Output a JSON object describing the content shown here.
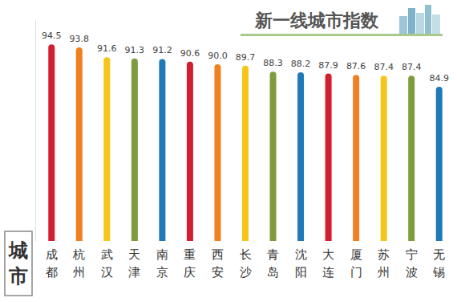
{
  "chart_data": {
    "type": "bar",
    "title": "新一线城市指数",
    "x_label": "城市",
    "categories": [
      "成都",
      "杭州",
      "武汉",
      "天津",
      "南京",
      "重庆",
      "西安",
      "长沙",
      "青岛",
      "沈阳",
      "大连",
      "厦门",
      "苏州",
      "宁波",
      "无锡"
    ],
    "values": [
      94.5,
      93.8,
      91.6,
      91.3,
      91.2,
      90.6,
      90.0,
      89.7,
      88.3,
      88.2,
      87.9,
      87.6,
      87.4,
      87.4,
      84.9
    ],
    "value_labels": [
      "94.5",
      "93.8",
      "91.6",
      "91.3",
      "91.2",
      "90.6",
      "90.0",
      "89.7",
      "88.3",
      "88.2",
      "87.9",
      "87.6",
      "87.4",
      "87.4",
      "84.9"
    ],
    "colors": [
      "#d21f2f",
      "#f0801f",
      "#f5c51c",
      "#7e9b3e",
      "#1f7ab8",
      "#d21f2f",
      "#f0801f",
      "#f5c51c",
      "#7e9b3e",
      "#1f7ab8",
      "#d21f2f",
      "#f0801f",
      "#f5c51c",
      "#7e9b3e",
      "#1f7ab8"
    ],
    "ylim": [
      50,
      100
    ],
    "data_labels": true,
    "tick_labels": "x",
    "grid": false
  }
}
